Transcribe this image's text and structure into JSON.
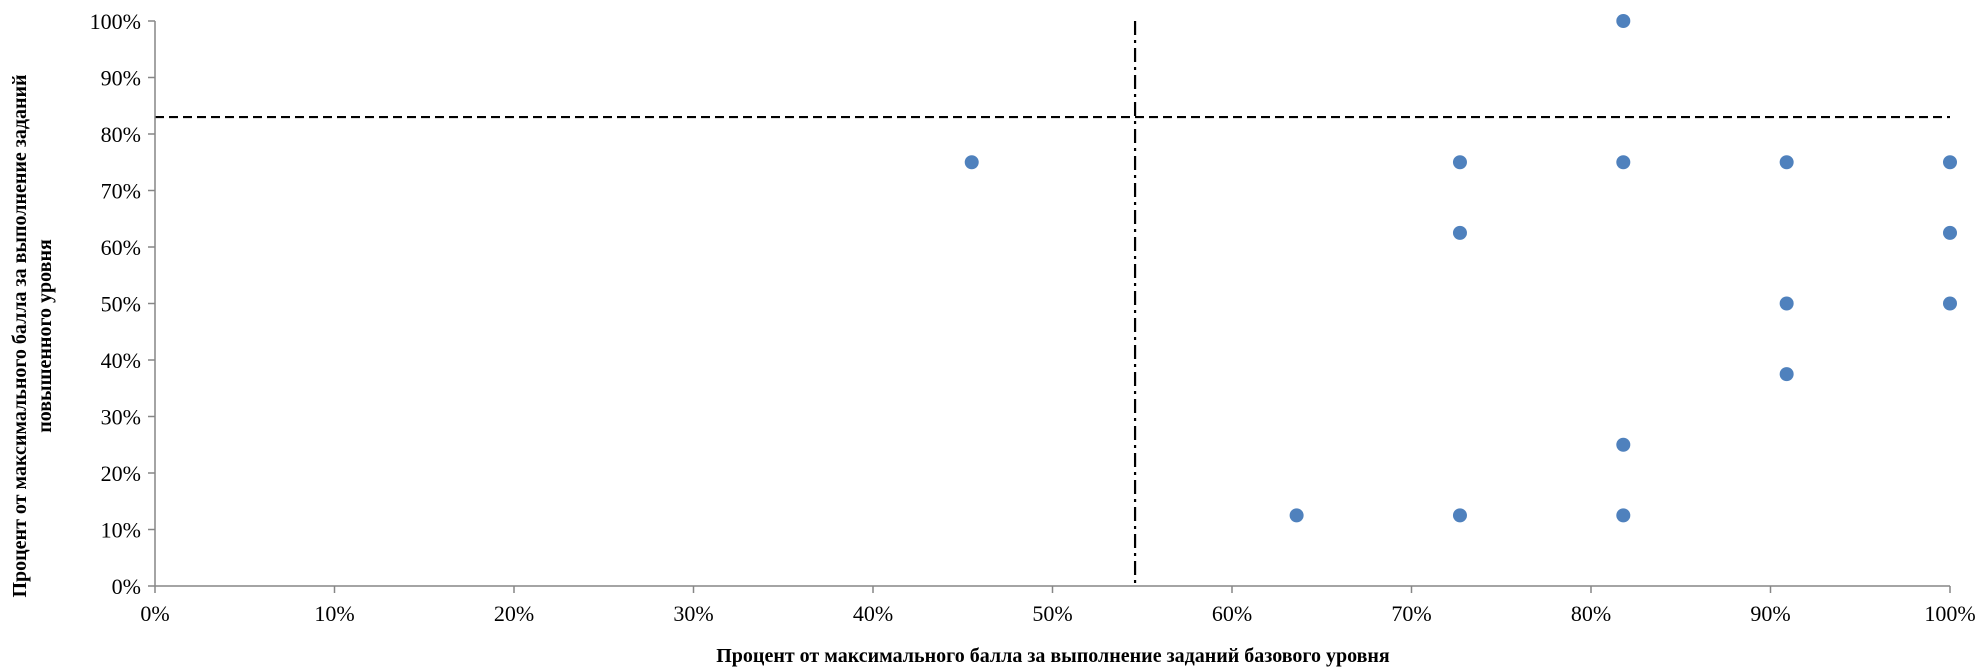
{
  "chart_data": {
    "type": "scatter",
    "xlabel": "Процент от максимального балла за выполнение заданий базового уровня",
    "ylabel_lines": [
      "Процент от максимального балла за выполнение заданий",
      "повышенного уровня"
    ],
    "xlim": [
      0,
      100
    ],
    "ylim": [
      0,
      100
    ],
    "x_ticks": [
      "0%",
      "10%",
      "20%",
      "30%",
      "40%",
      "50%",
      "60%",
      "70%",
      "80%",
      "90%",
      "100%"
    ],
    "y_ticks": [
      "0%",
      "10%",
      "20%",
      "30%",
      "40%",
      "50%",
      "60%",
      "70%",
      "80%",
      "90%",
      "100%"
    ],
    "grid": false,
    "legend": "none",
    "series": [
      {
        "color": "#4f81bd",
        "points": [
          {
            "x": 45.5,
            "y": 75
          },
          {
            "x": 63.6,
            "y": 12.5
          },
          {
            "x": 72.7,
            "y": 75
          },
          {
            "x": 72.7,
            "y": 62.5
          },
          {
            "x": 72.7,
            "y": 12.5
          },
          {
            "x": 81.8,
            "y": 100
          },
          {
            "x": 81.8,
            "y": 75
          },
          {
            "x": 81.8,
            "y": 25
          },
          {
            "x": 81.8,
            "y": 12.5
          },
          {
            "x": 90.9,
            "y": 75
          },
          {
            "x": 90.9,
            "y": 50
          },
          {
            "x": 90.9,
            "y": 37.5
          },
          {
            "x": 100,
            "y": 75
          },
          {
            "x": 100,
            "y": 62.5
          },
          {
            "x": 100,
            "y": 50
          }
        ]
      }
    ],
    "reference_lines": [
      {
        "orientation": "horizontal",
        "value": 83,
        "style": "dashed"
      },
      {
        "orientation": "vertical",
        "value": 54.6,
        "style": "dash-dot"
      }
    ]
  }
}
